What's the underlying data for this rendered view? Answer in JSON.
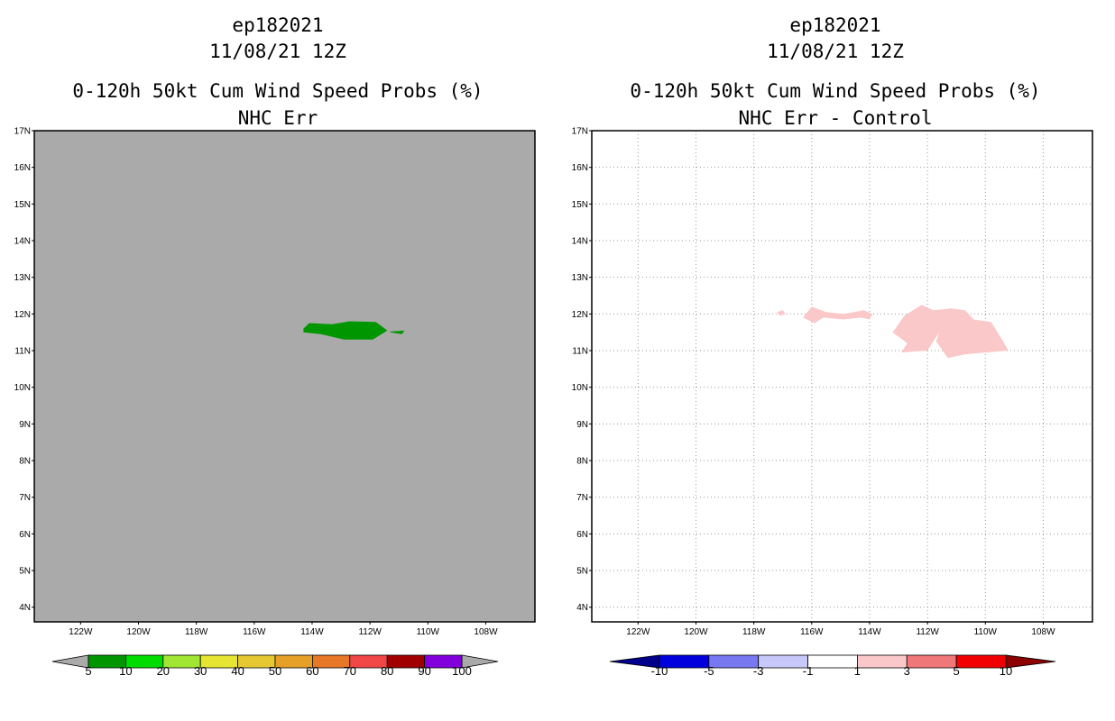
{
  "chart_data": [
    {
      "type": "heatmap",
      "title_lines": [
        "ep182021",
        "11/08/21 12Z",
        "0-120h 50kt Cum Wind Speed Probs (%)",
        "NHC Err"
      ],
      "background_color": "#aaaaaa",
      "grid": false,
      "xlim": [
        -123.6,
        -106.3
      ],
      "ylim": [
        3.6,
        17.0
      ],
      "x_tick_values": [
        -122,
        -120,
        -118,
        -116,
        -114,
        -112,
        -110,
        -108
      ],
      "x_tick_labels": [
        "122W",
        "120W",
        "118W",
        "116W",
        "114W",
        "112W",
        "110W",
        "108W"
      ],
      "y_tick_values": [
        4,
        5,
        6,
        7,
        8,
        9,
        10,
        11,
        12,
        13,
        14,
        15,
        16,
        17
      ],
      "y_tick_labels": [
        "4N",
        "5N",
        "6N",
        "7N",
        "8N",
        "9N",
        "10N",
        "11N",
        "12N",
        "13N",
        "14N",
        "15N",
        "16N",
        "17N"
      ],
      "regions": [
        {
          "category": "5-10",
          "color": "#009600",
          "points": [
            [
              -114.3,
              11.6
            ],
            [
              -114.1,
              11.75
            ],
            [
              -113.3,
              11.72
            ],
            [
              -112.7,
              11.8
            ],
            [
              -111.8,
              11.78
            ],
            [
              -111.4,
              11.55
            ],
            [
              -111.9,
              11.3
            ],
            [
              -112.9,
              11.3
            ],
            [
              -113.7,
              11.45
            ],
            [
              -114.3,
              11.5
            ]
          ]
        },
        {
          "category": "5-10",
          "color": "#009600",
          "points": [
            [
              -111.3,
              11.52
            ],
            [
              -110.8,
              11.55
            ],
            [
              -110.9,
              11.45
            ],
            [
              -111.3,
              11.5
            ]
          ]
        }
      ],
      "colorbar": {
        "labels": [
          "5",
          "10",
          "20",
          "30",
          "40",
          "50",
          "60",
          "70",
          "80",
          "90",
          "100"
        ],
        "colors": [
          "#009600",
          "#00dc00",
          "#a0e632",
          "#e6e632",
          "#e6c832",
          "#e6a028",
          "#e67828",
          "#f04646",
          "#a00000",
          "#8200dc"
        ],
        "end_color": "#aaaaaa"
      }
    },
    {
      "type": "heatmap",
      "title_lines": [
        "ep182021",
        "11/08/21 12Z",
        "0-120h 50kt Cum Wind Speed Probs (%)",
        "NHC Err - Control"
      ],
      "background_color": "#ffffff",
      "grid": true,
      "xlim": [
        -123.6,
        -106.3
      ],
      "ylim": [
        3.6,
        17.0
      ],
      "x_tick_values": [
        -122,
        -120,
        -118,
        -116,
        -114,
        -112,
        -110,
        -108
      ],
      "x_tick_labels": [
        "122W",
        "120W",
        "118W",
        "116W",
        "114W",
        "112W",
        "110W",
        "108W"
      ],
      "y_tick_values": [
        4,
        5,
        6,
        7,
        8,
        9,
        10,
        11,
        12,
        13,
        14,
        15,
        16,
        17
      ],
      "y_tick_labels": [
        "4N",
        "5N",
        "6N",
        "7N",
        "8N",
        "9N",
        "10N",
        "11N",
        "12N",
        "13N",
        "14N",
        "15N",
        "16N",
        "17N"
      ],
      "regions": [
        {
          "category": "1 to 3",
          "color": "#fac8c8",
          "points": [
            [
              -117.2,
              12.05
            ],
            [
              -117.0,
              12.1
            ],
            [
              -116.9,
              12.0
            ],
            [
              -117.1,
              11.95
            ]
          ]
        },
        {
          "category": "1 to 3",
          "color": "#fac8c8",
          "points": [
            [
              -116.3,
              11.9
            ],
            [
              -116.0,
              12.2
            ],
            [
              -115.5,
              12.05
            ],
            [
              -114.9,
              12.0
            ],
            [
              -114.2,
              12.1
            ],
            [
              -113.9,
              12.0
            ],
            [
              -114.0,
              11.85
            ],
            [
              -114.3,
              11.9
            ],
            [
              -114.9,
              11.85
            ],
            [
              -115.6,
              11.9
            ],
            [
              -115.9,
              11.75
            ]
          ]
        },
        {
          "category": "1 to 3",
          "color": "#fac8c8",
          "points": [
            [
              -113.2,
              11.5
            ],
            [
              -112.8,
              11.95
            ],
            [
              -112.2,
              12.25
            ],
            [
              -111.8,
              12.1
            ],
            [
              -111.2,
              12.15
            ],
            [
              -110.7,
              12.1
            ],
            [
              -110.4,
              11.85
            ],
            [
              -109.8,
              11.78
            ],
            [
              -109.5,
              11.4
            ],
            [
              -109.2,
              11.0
            ],
            [
              -110.0,
              10.95
            ],
            [
              -110.7,
              10.9
            ],
            [
              -111.3,
              10.8
            ],
            [
              -111.7,
              11.25
            ],
            [
              -111.6,
              11.5
            ],
            [
              -112.0,
              11.0
            ],
            [
              -112.9,
              10.95
            ],
            [
              -112.7,
              11.2
            ]
          ]
        }
      ],
      "colorbar": {
        "labels": [
          "-10",
          "-5",
          "-3",
          "-1",
          "1",
          "3",
          "5",
          "10"
        ],
        "colors": [
          "#0000dc",
          "#7878f0",
          "#c8c8fa",
          "#ffffff",
          "#fac8c8",
          "#f07878",
          "#f00000"
        ],
        "low_end_color": "#00008c",
        "high_end_color": "#8c0000"
      }
    }
  ]
}
